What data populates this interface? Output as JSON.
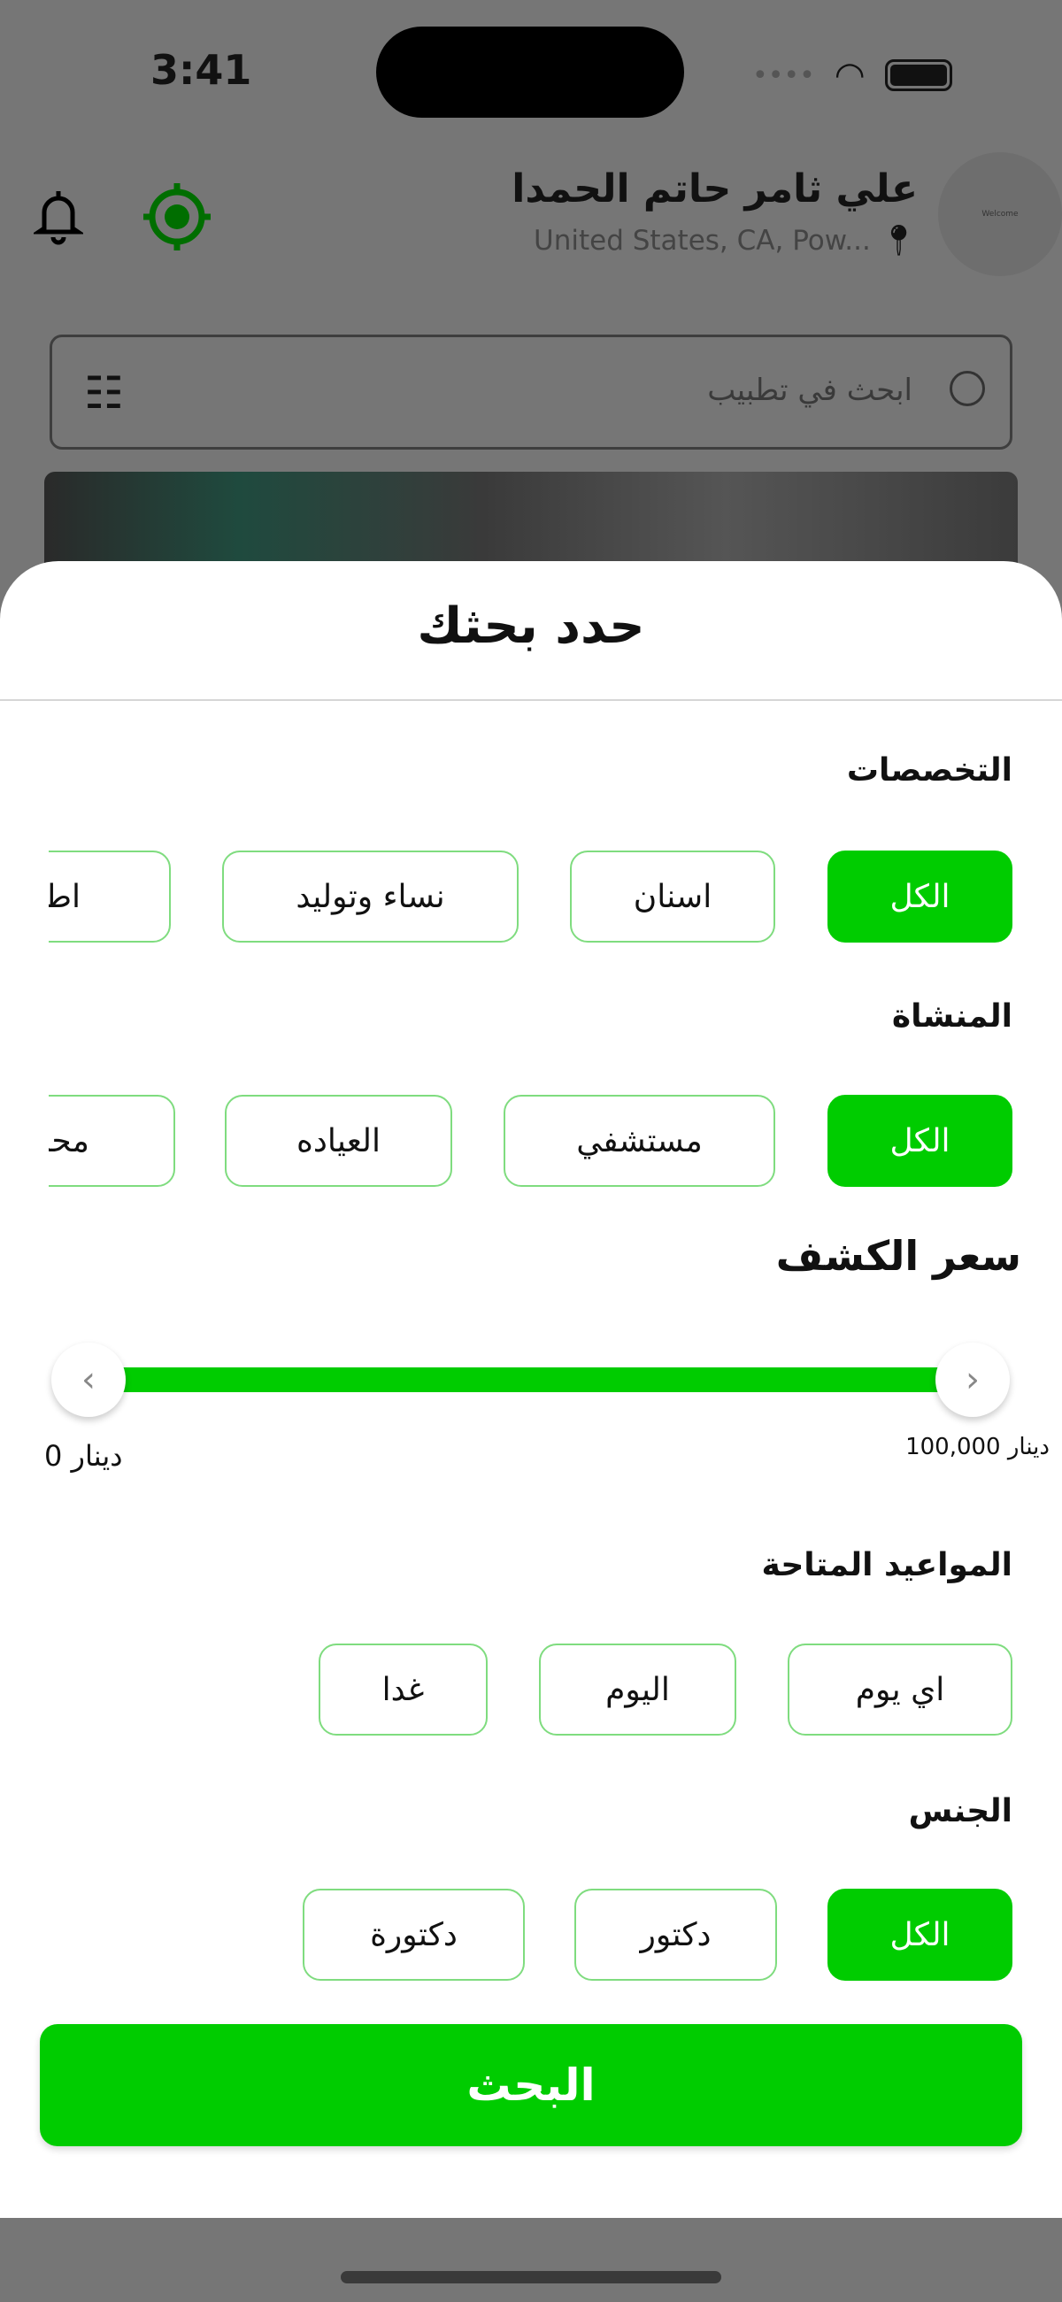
{
  "status_bar": {
    "time": "3:41"
  },
  "header": {
    "user_name": "علي ثامر حاتم الحمدا",
    "location": "United States, CA, Pow...",
    "avatar_text": "Welcome"
  },
  "search": {
    "placeholder": "ابحث في تطبيب"
  },
  "sheet": {
    "title": "حدد بحثك",
    "specialties": {
      "label": "التخصصات",
      "options": [
        "الكل",
        "اسنان",
        "نساء وتوليد",
        "اطفال"
      ],
      "selected": "الكل"
    },
    "facility": {
      "label": "المنشاة",
      "options": [
        "الكل",
        "مستشفي",
        "العياده",
        "محاضر"
      ],
      "selected": "الكل"
    },
    "price": {
      "label": "سعر الكشف",
      "min_label": "دينار 0",
      "max_label": "دينار 100,000",
      "min": 0,
      "max": 100000,
      "low": 0,
      "high": 100000
    },
    "appointments": {
      "label": "المواعيد المتاحة",
      "options": [
        "اي يوم",
        "اليوم",
        "غدا"
      ],
      "selected": null
    },
    "gender": {
      "label": "الجنس",
      "options": [
        "الكل",
        "دكتور",
        "دكتورة"
      ],
      "selected": "الكل"
    },
    "search_button": "البحث"
  },
  "colors": {
    "accent": "#00cc00",
    "target_icon": "#006e00",
    "overlay": "#767676"
  }
}
